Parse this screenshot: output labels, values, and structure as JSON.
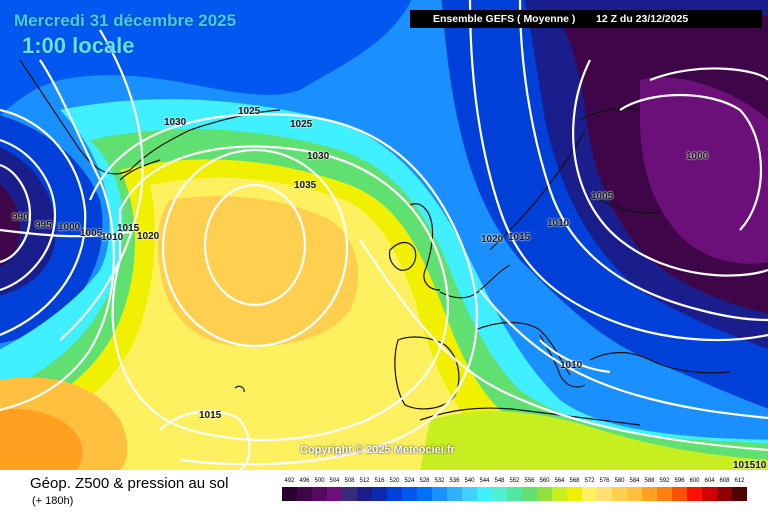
{
  "header": {
    "date_text": "Mercredi 31 décembre 2025",
    "local_time_text": "1:00 locale",
    "model_text": "Ensemble GEFS  ( Moyenne )",
    "run_text": "12 Z du 23/12/2025"
  },
  "copyright": "Copyright © 2025 Meteociel.fr",
  "footer": {
    "product_title": "Géop. Z500 & pression au sol",
    "lead_time": "(+ 180h)"
  },
  "isobar_labels": [
    {
      "id": "label-990",
      "text": "990"
    },
    {
      "id": "label-995",
      "text": "995"
    },
    {
      "id": "label-1000-west",
      "text": "1000"
    },
    {
      "id": "label-1005-west",
      "text": "1005"
    },
    {
      "id": "label-1010-west",
      "text": "1010"
    },
    {
      "id": "label-1015-west",
      "text": "1015"
    },
    {
      "id": "label-1020-west",
      "text": "1020"
    },
    {
      "id": "label-1025-north",
      "text": "1025"
    },
    {
      "id": "label-1030-north",
      "text": "1030"
    },
    {
      "id": "label-1025-center",
      "text": "1025"
    },
    {
      "id": "label-1030-center",
      "text": "1030"
    },
    {
      "id": "label-1035",
      "text": "1035"
    },
    {
      "id": "label-1020-east",
      "text": "1020"
    },
    {
      "id": "label-1015-east",
      "text": "1015"
    },
    {
      "id": "label-1010-east",
      "text": "1010"
    },
    {
      "id": "label-1005-east",
      "text": "1005"
    },
    {
      "id": "label-1000-east",
      "text": "1000"
    },
    {
      "id": "label-1010-med",
      "text": "1010"
    },
    {
      "id": "label-1015-south",
      "text": "1015"
    },
    {
      "id": "label-1015-corner",
      "text": "101510"
    }
  ],
  "legend": {
    "values": [
      "492",
      "496",
      "500",
      "504",
      "508",
      "512",
      "516",
      "520",
      "524",
      "528",
      "532",
      "536",
      "540",
      "544",
      "548",
      "552",
      "556",
      "560",
      "564",
      "568",
      "572",
      "576",
      "580",
      "584",
      "588",
      "592",
      "596",
      "600",
      "604",
      "608",
      "612"
    ],
    "colors": [
      "#2a0230",
      "#3e0648",
      "#550a60",
      "#6b1078",
      "#3a2a7a",
      "#1a1e8c",
      "#0a2ab0",
      "#0040d8",
      "#0058f0",
      "#0070ff",
      "#1a90ff",
      "#30b0ff",
      "#40d0ff",
      "#40f0ff",
      "#50f0d0",
      "#50e8a0",
      "#60e070",
      "#90e040",
      "#c8f020",
      "#f0f000",
      "#fff060",
      "#ffe070",
      "#ffd050",
      "#ffc040",
      "#ffa020",
      "#ff8010",
      "#ff5000",
      "#ff1000",
      "#d00000",
      "#900000",
      "#500000"
    ]
  }
}
